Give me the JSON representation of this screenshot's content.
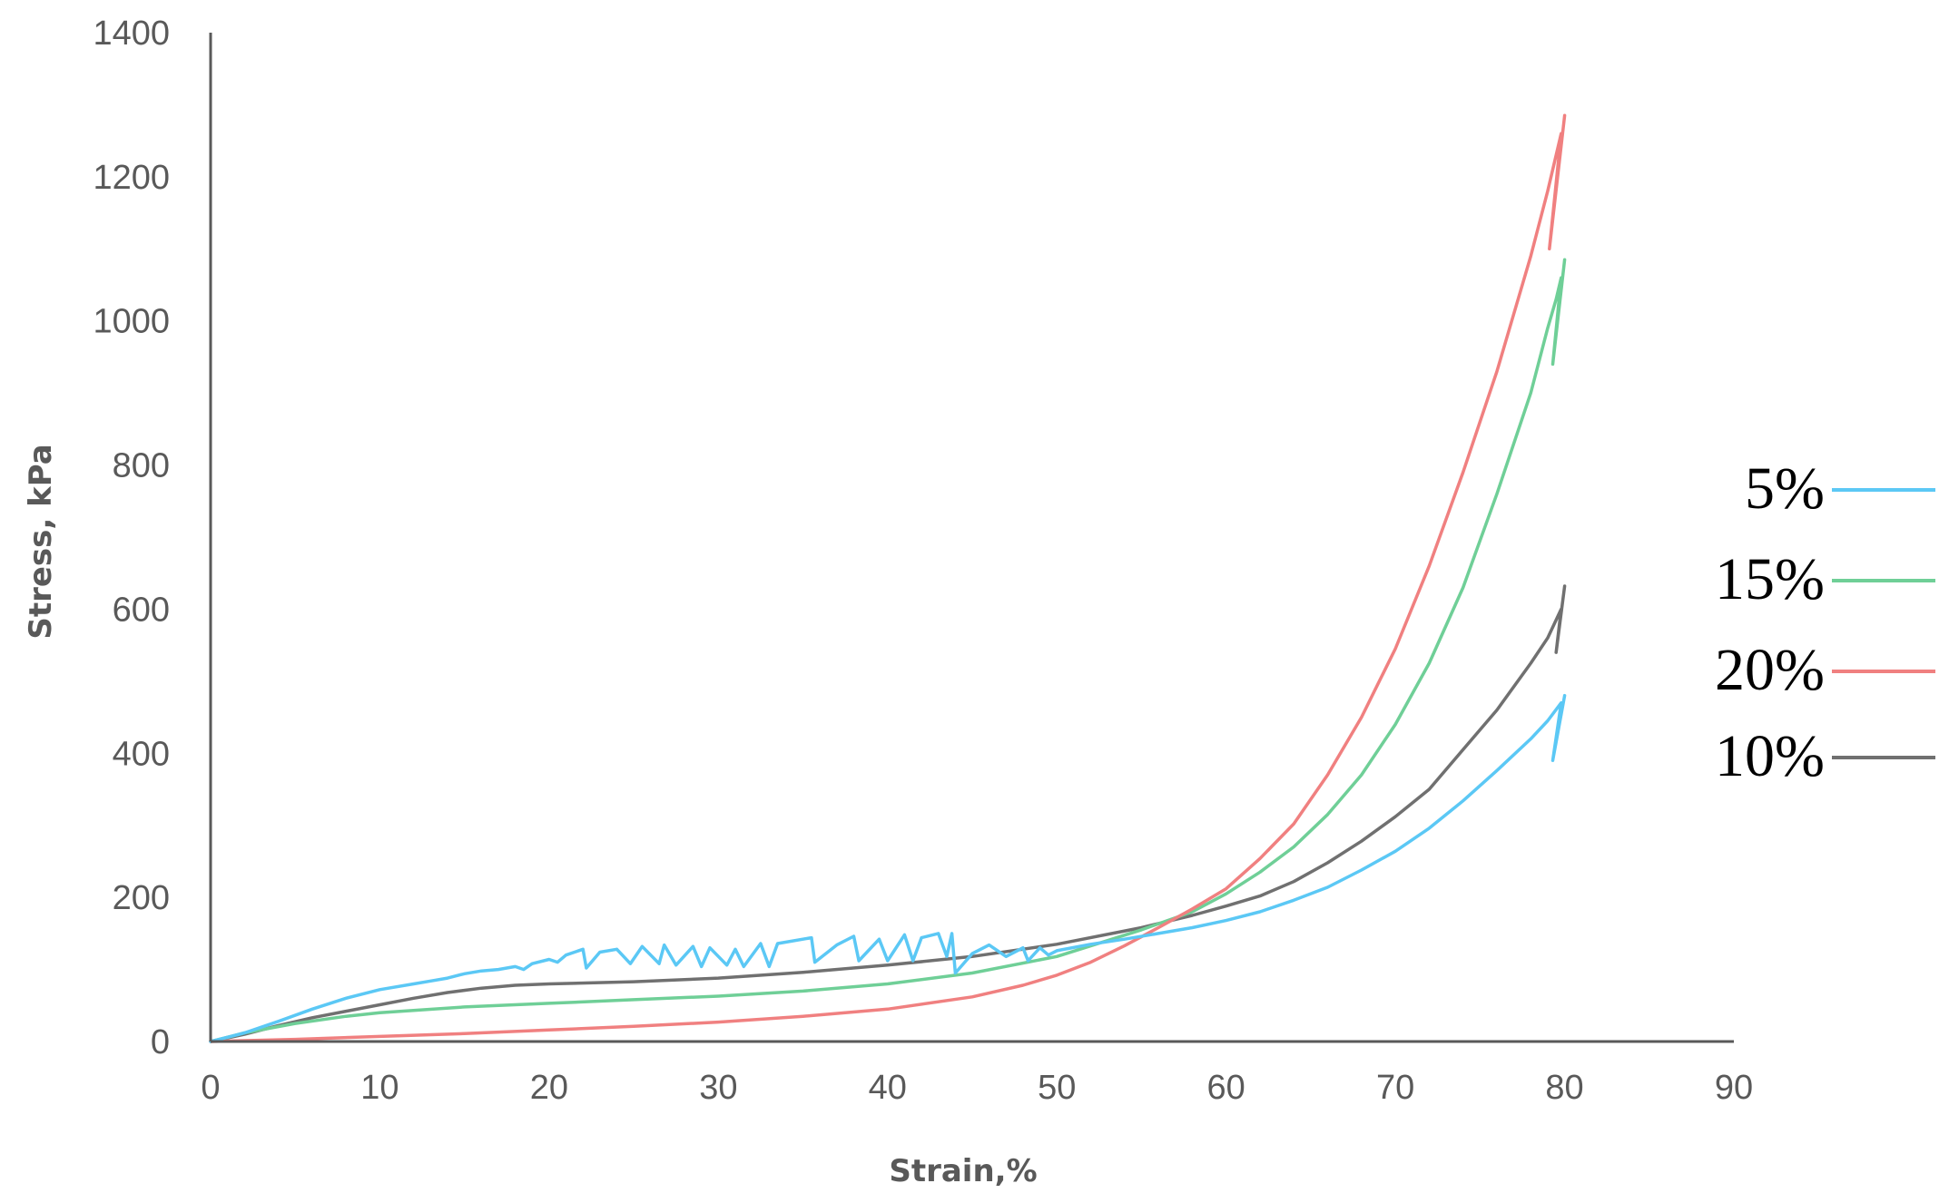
{
  "chart_data": {
    "type": "line",
    "xlabel": "Strain,%",
    "ylabel": "Stress, kPa",
    "xlim": [
      0,
      90
    ],
    "ylim": [
      0,
      1400
    ],
    "xticks": [
      0,
      10,
      20,
      30,
      40,
      50,
      60,
      70,
      80,
      90
    ],
    "yticks": [
      0,
      200,
      400,
      600,
      800,
      1000,
      1200,
      1400
    ],
    "grid": false,
    "legend_position": "right",
    "series": [
      {
        "name": "5%",
        "color": "#5bc8f5",
        "x": [
          0,
          2,
          4,
          6,
          8,
          10,
          12,
          13,
          14,
          15,
          16,
          17,
          18,
          18.5,
          19,
          20,
          20.5,
          21,
          22,
          22.2,
          23,
          24,
          24.8,
          25.5,
          26.5,
          26.8,
          27.5,
          28.5,
          29,
          29.5,
          30.5,
          31,
          31.5,
          32.5,
          33,
          33.5,
          35.5,
          35.7,
          37,
          38,
          38.3,
          39.5,
          40,
          41,
          41.5,
          42,
          43,
          43.5,
          43.8,
          44,
          45,
          46,
          47,
          48,
          48.3,
          49,
          49.5,
          50,
          52,
          54,
          56,
          58,
          60,
          62,
          64,
          66,
          68,
          70,
          72,
          74,
          76,
          78,
          79,
          79.8,
          79.3,
          80
        ],
        "y": [
          0,
          12,
          28,
          45,
          60,
          72,
          80,
          84,
          88,
          94,
          98,
          100,
          104,
          100,
          108,
          114,
          110,
          120,
          128,
          102,
          124,
          128,
          108,
          132,
          108,
          134,
          106,
          132,
          104,
          130,
          106,
          128,
          104,
          136,
          104,
          136,
          144,
          110,
          134,
          146,
          112,
          142,
          112,
          148,
          112,
          144,
          150,
          118,
          150,
          95,
          122,
          134,
          118,
          130,
          112,
          130,
          120,
          126,
          135,
          142,
          150,
          158,
          168,
          180,
          196,
          214,
          238,
          264,
          296,
          334,
          376,
          420,
          445,
          470,
          390,
          480
        ]
      },
      {
        "name": "15%",
        "color": "#6fcf97",
        "x": [
          0,
          2,
          5,
          8,
          10,
          15,
          20,
          25,
          30,
          35,
          40,
          45,
          50,
          55,
          58,
          60,
          62,
          64,
          66,
          68,
          70,
          72,
          74,
          76,
          78,
          79,
          79.5,
          79.8,
          79.3,
          80
        ],
        "y": [
          0,
          12,
          25,
          35,
          40,
          48,
          53,
          58,
          63,
          70,
          80,
          95,
          118,
          155,
          180,
          205,
          235,
          270,
          315,
          370,
          440,
          525,
          630,
          760,
          900,
          990,
          1030,
          1060,
          940,
          1085
        ]
      },
      {
        "name": "20%",
        "color": "#f08080",
        "x": [
          0,
          5,
          10,
          15,
          20,
          25,
          30,
          35,
          40,
          45,
          48,
          50,
          52,
          54,
          56,
          58,
          60,
          62,
          64,
          66,
          68,
          70,
          72,
          74,
          76,
          78,
          79,
          79.8,
          79.1,
          80
        ],
        "y": [
          0,
          3,
          7,
          11,
          16,
          21,
          27,
          35,
          45,
          62,
          78,
          92,
          110,
          133,
          158,
          184,
          212,
          254,
          302,
          370,
          450,
          545,
          660,
          790,
          930,
          1090,
          1180,
          1260,
          1100,
          1285
        ]
      },
      {
        "name": "10%",
        "color": "#707070",
        "x": [
          0,
          2,
          4,
          6,
          8,
          10,
          12,
          14,
          16,
          18,
          20,
          25,
          30,
          35,
          40,
          45,
          50,
          55,
          58,
          60,
          62,
          64,
          66,
          68,
          70,
          72,
          74,
          76,
          78,
          79,
          79.8,
          79.5,
          80
        ],
        "y": [
          0,
          10,
          22,
          33,
          42,
          51,
          60,
          68,
          74,
          78,
          80,
          83,
          88,
          96,
          106,
          118,
          135,
          158,
          175,
          188,
          202,
          222,
          248,
          278,
          312,
          350,
          405,
          460,
          525,
          560,
          600,
          540,
          632
        ]
      }
    ]
  }
}
